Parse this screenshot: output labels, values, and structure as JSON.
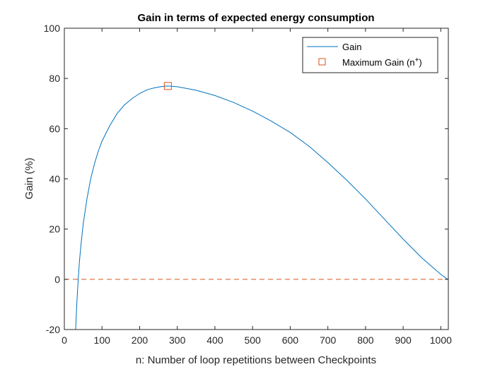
{
  "chart_data": {
    "type": "line",
    "title": "Gain in terms of expected energy consumption",
    "xlabel": "n: Number of loop repetitions between Checkpoints",
    "ylabel": "Gain (%)",
    "xlim": [
      0,
      1020
    ],
    "ylim": [
      -20,
      100
    ],
    "xticks": [
      0,
      100,
      200,
      300,
      400,
      500,
      600,
      700,
      800,
      900,
      1000
    ],
    "yticks": [
      -20,
      0,
      20,
      40,
      60,
      80,
      100
    ],
    "grid": false,
    "legend_position": "top-right",
    "series": [
      {
        "name": "Gain",
        "style": "solid",
        "color": "#0072BD",
        "points": [
          [
            30,
            -20
          ],
          [
            33,
            -10
          ],
          [
            36,
            -2
          ],
          [
            40,
            7
          ],
          [
            45,
            15
          ],
          [
            50,
            22
          ],
          [
            60,
            32
          ],
          [
            70,
            40
          ],
          [
            80,
            46
          ],
          [
            90,
            51
          ],
          [
            100,
            55
          ],
          [
            120,
            61
          ],
          [
            140,
            66
          ],
          [
            160,
            69.5
          ],
          [
            180,
            72
          ],
          [
            200,
            74
          ],
          [
            220,
            75.5
          ],
          [
            240,
            76.3
          ],
          [
            260,
            76.8
          ],
          [
            275,
            77
          ],
          [
            300,
            76.7
          ],
          [
            350,
            75.3
          ],
          [
            400,
            73.2
          ],
          [
            450,
            70.4
          ],
          [
            500,
            67
          ],
          [
            550,
            63
          ],
          [
            600,
            58.5
          ],
          [
            650,
            53
          ],
          [
            700,
            46.5
          ],
          [
            750,
            39.5
          ],
          [
            800,
            32
          ],
          [
            850,
            24
          ],
          [
            900,
            16
          ],
          [
            950,
            8.5
          ],
          [
            1000,
            2
          ],
          [
            1018,
            0
          ]
        ]
      },
      {
        "name": "Maximum Gain (n+)",
        "marker": "square",
        "color": "#D95319",
        "points": [
          [
            275,
            77
          ]
        ]
      }
    ],
    "reference_lines": [
      {
        "orientation": "horizontal",
        "y": 0,
        "style": "dashed",
        "color": "#D95319"
      }
    ],
    "legend": {
      "gain_label": "Gain",
      "max_label_text": "Maximum Gain (n",
      "max_label_superscript": "+",
      "max_label_close": ")"
    }
  }
}
